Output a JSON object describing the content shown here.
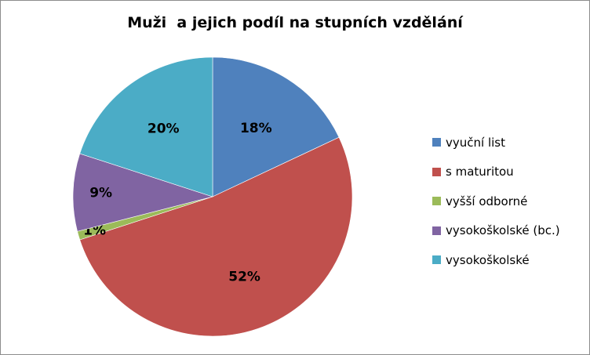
{
  "chart_data": {
    "type": "pie",
    "title": "Muži  a jejich podíl na stupních vzdělání",
    "slices": [
      {
        "label": "vyuční list",
        "value": 18,
        "data_label": "18%",
        "color": "#4f81bd"
      },
      {
        "label": "s maturitou",
        "value": 52,
        "data_label": "52%",
        "color": "#c0504d"
      },
      {
        "label": "vyšší odborné",
        "value": 1,
        "data_label": "1%",
        "color": "#9bbb59"
      },
      {
        "label": "vysokoškolské (bc.)",
        "value": 9,
        "data_label": "9%",
        "color": "#8064a2"
      },
      {
        "label": "vysokoškolské",
        "value": 20,
        "data_label": "20%",
        "color": "#4bacc6"
      }
    ],
    "legend_position": "right"
  }
}
